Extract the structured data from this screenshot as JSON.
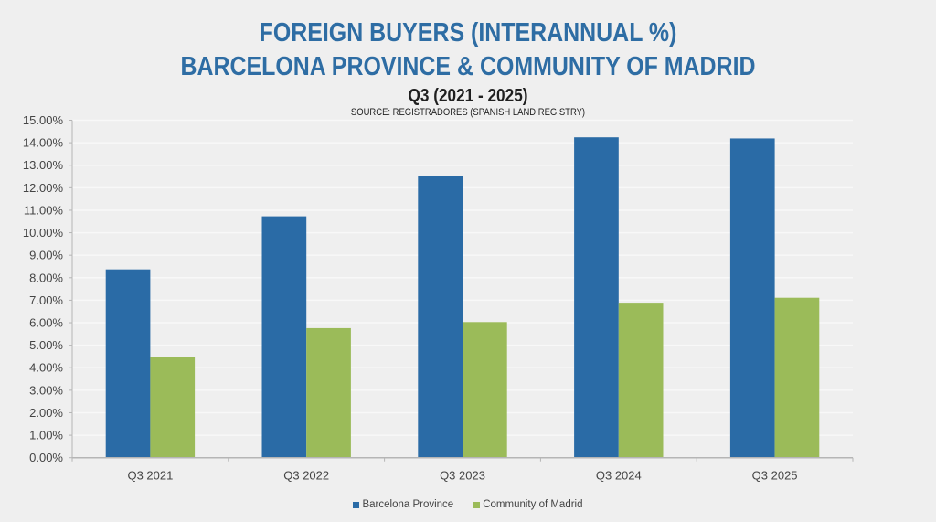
{
  "header": {
    "title_line1": "FOREIGN BUYERS (INTERANNUAL %)",
    "title_line2": "BARCELONA PROVINCE & COMMUNITY OF MADRID",
    "subtitle": "Q3 (2021 - 2025)",
    "source": "SOURCE: REGISTRADORES (SPANISH LAND REGISTRY)"
  },
  "colors": {
    "title": "#2e6da4",
    "barcelona": "#2a6ba6",
    "madrid": "#9bbb59",
    "background": "#efefef",
    "gridline": "#f8f8f8",
    "axis": "#b5b5b5"
  },
  "legend": {
    "items": [
      {
        "label": "Barcelona Province",
        "color": "#2a6ba6"
      },
      {
        "label": "Community of Madrid",
        "color": "#9bbb59"
      }
    ]
  },
  "chart_data": {
    "type": "bar",
    "title": "FOREIGN BUYERS (INTERANNUAL %) BARCELONA PROVINCE & COMMUNITY OF MADRID",
    "subtitle": "Q3 (2021 - 2025)",
    "source": "SOURCE: REGISTRADORES (SPANISH LAND REGISTRY)",
    "xlabel": "",
    "ylabel": "",
    "categories": [
      "Q3 2021",
      "Q3 2022",
      "Q3 2023",
      "Q3 2024",
      "Q3 2025"
    ],
    "series": [
      {
        "name": "Barcelona Province",
        "color": "#2a6ba6",
        "values": [
          8.37,
          10.73,
          12.54,
          14.24,
          14.19
        ]
      },
      {
        "name": "Community of Madrid",
        "color": "#9bbb59",
        "values": [
          4.47,
          5.76,
          6.03,
          6.89,
          7.11
        ]
      }
    ],
    "ylim": [
      0,
      15
    ],
    "yticks": [
      "0.00%",
      "1.00%",
      "2.00%",
      "3.00%",
      "4.00%",
      "5.00%",
      "6.00%",
      "7.00%",
      "8.00%",
      "9.00%",
      "10.00%",
      "11.00%",
      "12.00%",
      "13.00%",
      "14.00%",
      "15.00%"
    ],
    "ytick_step": 1,
    "grid": true,
    "legend_position": "bottom",
    "value_format": "percent"
  }
}
